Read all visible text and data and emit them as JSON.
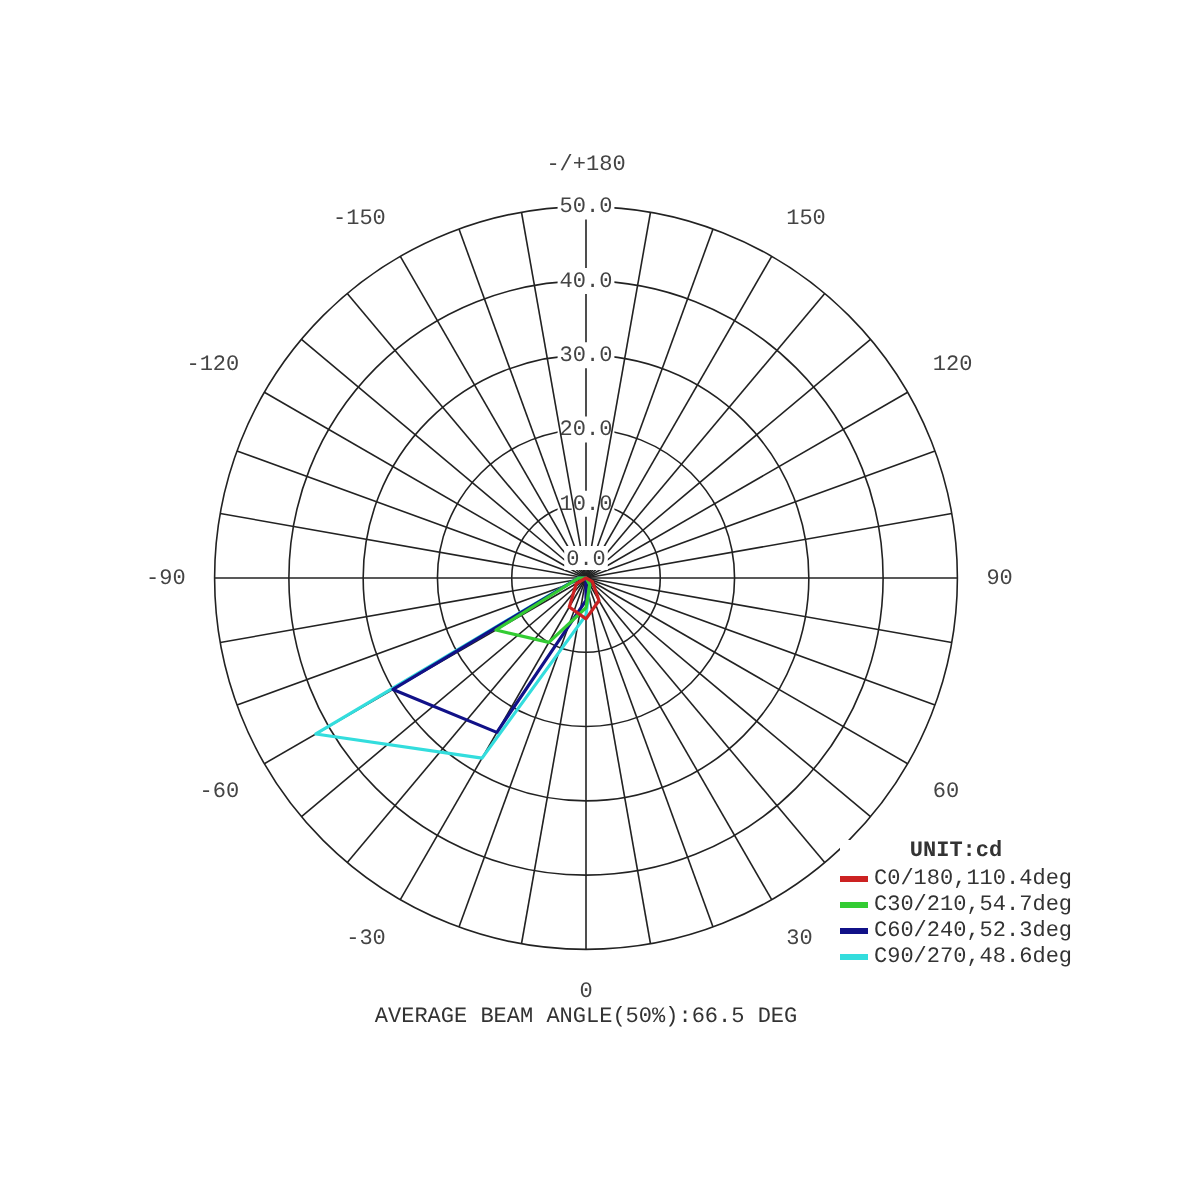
{
  "chart_data": {
    "type": "radar",
    "categories": [
      "-/+180",
      "150",
      "120",
      "90",
      "60",
      "30",
      "0",
      "-30",
      "-60",
      "-90",
      "-120",
      "-150"
    ],
    "series": [
      {
        "name": "C0/180,110.4deg",
        "color": "#cc2222",
        "values": [
          0,
          0,
          0,
          0,
          1,
          3.5,
          5.5,
          4.5,
          1.5,
          0,
          0,
          0
        ]
      },
      {
        "name": "C30/210,54.7deg",
        "color": "#33cc33",
        "values": [
          0,
          0,
          0,
          0,
          0,
          1,
          4,
          10,
          14,
          1,
          0,
          0
        ]
      },
      {
        "name": "C60/240,52.3deg",
        "color": "#111188",
        "values": [
          0,
          0,
          0,
          0,
          0,
          0,
          3,
          24,
          30,
          1,
          0,
          0
        ]
      },
      {
        "name": "C90/270,48.6deg",
        "color": "#33dddd",
        "values": [
          0,
          0,
          0,
          0,
          0,
          1,
          5,
          28,
          42,
          1,
          0,
          0
        ]
      }
    ],
    "ylim": [
      0,
      50
    ],
    "yticks": [
      {
        "value": 0,
        "label": "0.0"
      },
      {
        "value": 10,
        "label": "10.0"
      },
      {
        "value": 20,
        "label": "20.0"
      },
      {
        "value": 30,
        "label": "30.0"
      },
      {
        "value": 40,
        "label": "40.0"
      },
      {
        "value": 50,
        "label": "50.0"
      }
    ],
    "grid": true,
    "legend": "bottom right",
    "legend_title": "UNIT:cd",
    "marker": "none",
    "line_style": "solid",
    "annotations": [
      "AVERAGE BEAM ANGLE(50%):66.5 DEG"
    ]
  }
}
